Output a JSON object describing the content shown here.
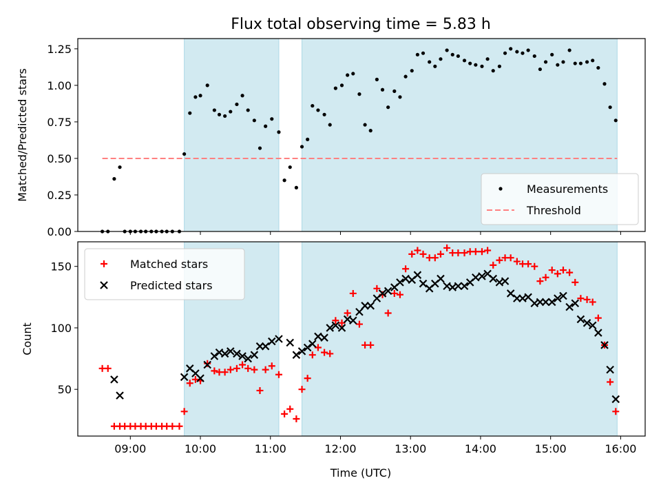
{
  "chart_data": {
    "title": "Flux total observing time = 5.83 h",
    "x_unit": "hours UTC",
    "xlabel": "Time (UTC)",
    "x_ticks": [
      {
        "value": 9,
        "label": "09:00"
      },
      {
        "value": 10,
        "label": "10:00"
      },
      {
        "value": 11,
        "label": "11:00"
      },
      {
        "value": 12,
        "label": "12:00"
      },
      {
        "value": 13,
        "label": "13:00"
      },
      {
        "value": 14,
        "label": "14:00"
      },
      {
        "value": 15,
        "label": "15:00"
      },
      {
        "value": 16,
        "label": "16:00"
      }
    ],
    "xlim": [
      8.25,
      16.35
    ],
    "shaded_intervals": [
      [
        9.77,
        11.12
      ],
      [
        11.45,
        15.95
      ]
    ],
    "shade_color": "#add8e6",
    "panels": [
      {
        "type": "scatter",
        "ylabel": "Matched/Predicted stars",
        "ylim": [
          0,
          1.32
        ],
        "y_ticks": [
          {
            "value": 0,
            "label": "0.00"
          },
          {
            "value": 0.25,
            "label": "0.25"
          },
          {
            "value": 0.5,
            "label": "0.50"
          },
          {
            "value": 0.75,
            "label": "0.75"
          },
          {
            "value": 1.0,
            "label": "1.00"
          },
          {
            "value": 1.25,
            "label": "1.25"
          }
        ],
        "legend_position": "lower-right",
        "series": [
          {
            "name": "Measurements",
            "marker": "dot",
            "color": "#000000",
            "x": [
              8.6,
              8.68,
              8.77,
              8.85,
              8.92,
              9.0,
              9.07,
              9.15,
              9.22,
              9.3,
              9.37,
              9.45,
              9.52,
              9.6,
              9.7,
              9.77,
              9.85,
              9.93,
              10.0,
              10.1,
              10.2,
              10.27,
              10.35,
              10.43,
              10.52,
              10.6,
              10.68,
              10.77,
              10.85,
              10.93,
              11.02,
              11.12,
              11.2,
              11.28,
              11.37,
              11.45,
              11.53,
              11.6,
              11.68,
              11.77,
              11.85,
              11.93,
              12.02,
              12.1,
              12.18,
              12.27,
              12.35,
              12.43,
              12.52,
              12.6,
              12.68,
              12.77,
              12.85,
              12.93,
              13.02,
              13.1,
              13.18,
              13.27,
              13.35,
              13.43,
              13.52,
              13.6,
              13.68,
              13.77,
              13.85,
              13.93,
              14.02,
              14.1,
              14.18,
              14.27,
              14.35,
              14.43,
              14.52,
              14.6,
              14.68,
              14.77,
              14.85,
              14.93,
              15.02,
              15.1,
              15.18,
              15.27,
              15.35,
              15.43,
              15.52,
              15.6,
              15.68,
              15.77,
              15.85,
              15.93
            ],
            "y": [
              0.0,
              0.0,
              0.36,
              0.44,
              0.0,
              0.0,
              0.0,
              0.0,
              0.0,
              0.0,
              0.0,
              0.0,
              0.0,
              0.0,
              0.0,
              0.53,
              0.81,
              0.92,
              0.93,
              1.0,
              0.83,
              0.8,
              0.79,
              0.82,
              0.87,
              0.93,
              0.83,
              0.76,
              0.57,
              0.72,
              0.77,
              0.68,
              0.35,
              0.44,
              0.3,
              0.58,
              0.63,
              0.86,
              0.83,
              0.8,
              0.73,
              0.98,
              1.0,
              1.07,
              1.08,
              0.94,
              0.73,
              0.69,
              1.04,
              0.97,
              0.85,
              0.96,
              0.92,
              1.06,
              1.1,
              1.21,
              1.22,
              1.16,
              1.13,
              1.18,
              1.24,
              1.21,
              1.2,
              1.17,
              1.15,
              1.14,
              1.13,
              1.18,
              1.1,
              1.13,
              1.22,
              1.25,
              1.23,
              1.22,
              1.24,
              1.2,
              1.11,
              1.16,
              1.21,
              1.14,
              1.16,
              1.24,
              1.15,
              1.15,
              1.16,
              1.17,
              1.12,
              1.01,
              0.85,
              0.76
            ]
          },
          {
            "name": "Threshold",
            "marker": "dashed-line",
            "color": "#ff8080",
            "x": [
              8.6,
              15.95
            ],
            "y": [
              0.5,
              0.5
            ]
          }
        ]
      },
      {
        "type": "scatter",
        "ylabel": "Count",
        "ylim": [
          12,
          170
        ],
        "y_ticks": [
          {
            "value": 50,
            "label": "50"
          },
          {
            "value": 100,
            "label": "100"
          },
          {
            "value": 150,
            "label": "150"
          }
        ],
        "legend_position": "upper-left",
        "series": [
          {
            "name": "Matched stars",
            "marker": "plus",
            "color": "#ff0000",
            "x": [
              8.6,
              8.68,
              8.77,
              8.85,
              8.92,
              9.0,
              9.07,
              9.15,
              9.22,
              9.3,
              9.37,
              9.45,
              9.52,
              9.6,
              9.7,
              9.77,
              9.85,
              9.93,
              10.0,
              10.1,
              10.2,
              10.27,
              10.35,
              10.43,
              10.52,
              10.6,
              10.68,
              10.77,
              10.85,
              10.93,
              11.02,
              11.12,
              11.2,
              11.28,
              11.37,
              11.45,
              11.53,
              11.6,
              11.68,
              11.77,
              11.85,
              11.93,
              12.02,
              12.1,
              12.18,
              12.27,
              12.35,
              12.43,
              12.52,
              12.6,
              12.68,
              12.77,
              12.85,
              12.93,
              13.02,
              13.1,
              13.18,
              13.27,
              13.35,
              13.43,
              13.52,
              13.6,
              13.68,
              13.77,
              13.85,
              13.93,
              14.02,
              14.1,
              14.18,
              14.27,
              14.35,
              14.43,
              14.52,
              14.6,
              14.68,
              14.77,
              14.85,
              14.93,
              15.02,
              15.1,
              15.18,
              15.27,
              15.35,
              15.43,
              15.52,
              15.6,
              15.68,
              15.77,
              15.85,
              15.93
            ],
            "y": [
              67,
              67,
              20,
              20,
              20,
              20,
              20,
              20,
              20,
              20,
              20,
              20,
              20,
              20,
              20,
              32,
              55,
              58,
              57,
              71,
              65,
              64,
              64,
              66,
              67,
              70,
              67,
              66,
              49,
              66,
              69,
              62,
              30,
              34,
              26,
              50,
              59,
              78,
              84,
              80,
              79,
              106,
              104,
              112,
              128,
              103,
              86,
              86,
              132,
              127,
              112,
              128,
              127,
              148,
              160,
              163,
              160,
              157,
              157,
              160,
              165,
              161,
              161,
              161,
              162,
              162,
              162,
              163,
              151,
              155,
              157,
              157,
              154,
              152,
              152,
              150,
              138,
              141,
              147,
              144,
              147,
              145,
              137,
              124,
              123,
              121,
              108,
              86,
              56,
              32
            ]
          },
          {
            "name": "Predicted stars",
            "marker": "x",
            "color": "#000000",
            "x": [
              8.77,
              8.85,
              9.77,
              9.85,
              9.93,
              10.0,
              10.1,
              10.2,
              10.27,
              10.35,
              10.43,
              10.52,
              10.6,
              10.68,
              10.77,
              10.85,
              10.93,
              11.02,
              11.12,
              11.28,
              11.37,
              11.45,
              11.53,
              11.6,
              11.68,
              11.77,
              11.85,
              11.93,
              12.02,
              12.1,
              12.18,
              12.27,
              12.35,
              12.43,
              12.52,
              12.6,
              12.68,
              12.77,
              12.85,
              12.93,
              13.02,
              13.1,
              13.18,
              13.27,
              13.35,
              13.43,
              13.52,
              13.6,
              13.68,
              13.77,
              13.85,
              13.93,
              14.02,
              14.1,
              14.18,
              14.27,
              14.35,
              14.43,
              14.52,
              14.6,
              14.68,
              14.77,
              14.85,
              14.93,
              15.02,
              15.1,
              15.18,
              15.27,
              15.35,
              15.43,
              15.52,
              15.6,
              15.68,
              15.77,
              15.85,
              15.93
            ],
            "y": [
              58,
              45,
              60,
              67,
              63,
              59,
              70,
              77,
              80,
              79,
              81,
              79,
              77,
              75,
              78,
              85,
              85,
              89,
              91,
              88,
              78,
              81,
              84,
              87,
              93,
              92,
              100,
              102,
              100,
              107,
              106,
              113,
              118,
              118,
              124,
              128,
              130,
              133,
              137,
              140,
              139,
              143,
              136,
              132,
              136,
              140,
              134,
              133,
              134,
              134,
              137,
              141,
              142,
              144,
              140,
              137,
              138,
              128,
              124,
              124,
              125,
              120,
              121,
              121,
              121,
              124,
              126,
              117,
              120,
              107,
              104,
              102,
              96,
              86,
              66,
              42
            ]
          }
        ]
      }
    ]
  }
}
